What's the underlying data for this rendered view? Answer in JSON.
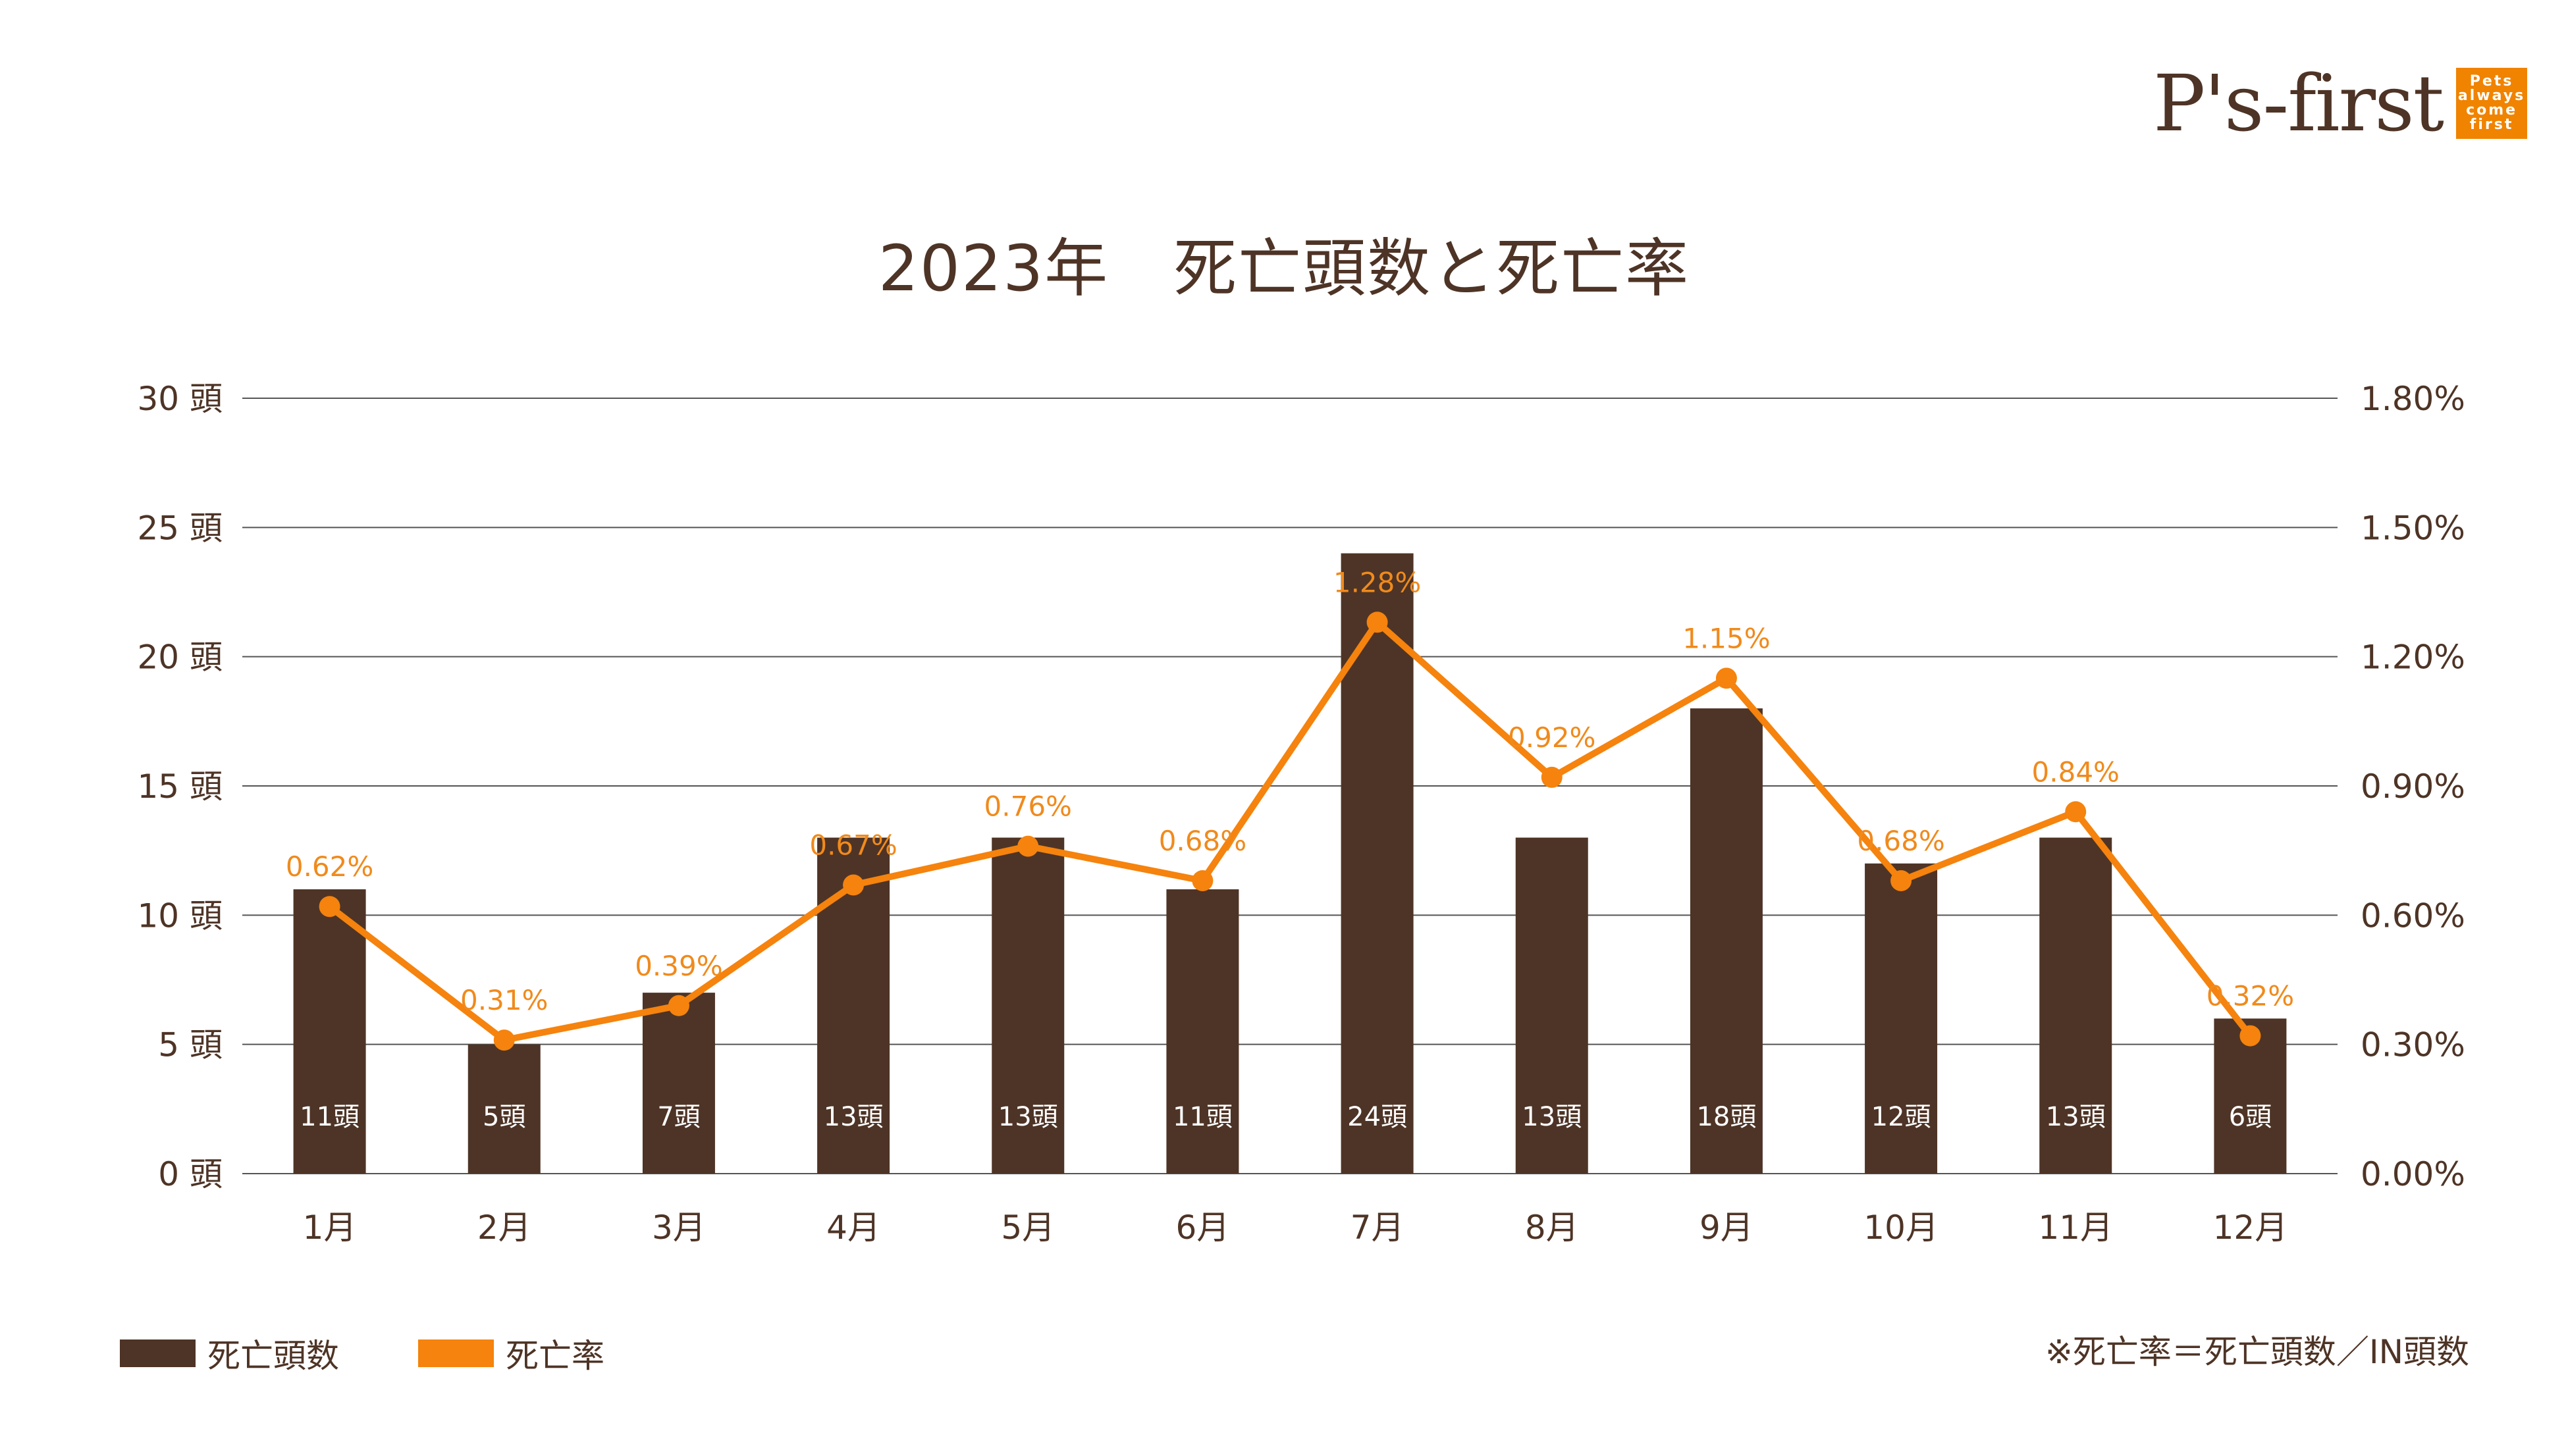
{
  "header": {
    "logo_text": "P's-first",
    "logo_box_lines": [
      "Pets",
      "always",
      "come",
      "first"
    ]
  },
  "colors": {
    "bar": "#4e3426",
    "line": "#f5830d",
    "text": "#4e3426",
    "grid": "#555555",
    "label_orange": "#f08a1c"
  },
  "chart_data": {
    "type": "bar",
    "title": "2023年　死亡頭数と死亡率",
    "categories": [
      "1月",
      "2月",
      "3月",
      "4月",
      "5月",
      "6月",
      "7月",
      "8月",
      "9月",
      "10月",
      "11月",
      "12月"
    ],
    "series": [
      {
        "name": "死亡頭数",
        "type": "bar",
        "axis": "left",
        "values": [
          11,
          5,
          7,
          13,
          13,
          11,
          24,
          13,
          18,
          12,
          13,
          6
        ],
        "labels": [
          "11頭",
          "5頭",
          "7頭",
          "13頭",
          "13頭",
          "11頭",
          "24頭",
          "13頭",
          "18頭",
          "12頭",
          "13頭",
          "6頭"
        ]
      },
      {
        "name": "死亡率",
        "type": "line",
        "axis": "right",
        "values": [
          0.62,
          0.31,
          0.39,
          0.67,
          0.76,
          0.68,
          1.28,
          0.92,
          1.15,
          0.68,
          0.84,
          0.32
        ],
        "labels": [
          "0.62%",
          "0.31%",
          "0.39%",
          "0.67%",
          "0.76%",
          "0.68%",
          "1.28%",
          "0.92%",
          "1.15%",
          "0.68%",
          "0.84%",
          "0.32%"
        ]
      }
    ],
    "y_left": {
      "range": [
        0,
        30
      ],
      "ticks": [
        0,
        5,
        10,
        15,
        20,
        25,
        30
      ],
      "tick_labels": [
        "0 頭",
        "5 頭",
        "10 頭",
        "15 頭",
        "20 頭",
        "25 頭",
        "30 頭"
      ]
    },
    "y_right": {
      "range": [
        0,
        1.8
      ],
      "ticks": [
        0,
        0.3,
        0.6,
        0.9,
        1.2,
        1.5,
        1.8
      ],
      "tick_labels": [
        "0.00%",
        "0.30%",
        "0.60%",
        "0.90%",
        "1.20%",
        "1.50%",
        "1.80%"
      ]
    },
    "grid": true,
    "legend_position": "bottom-left",
    "footnote": "※死亡率＝死亡頭数／IN頭数"
  }
}
